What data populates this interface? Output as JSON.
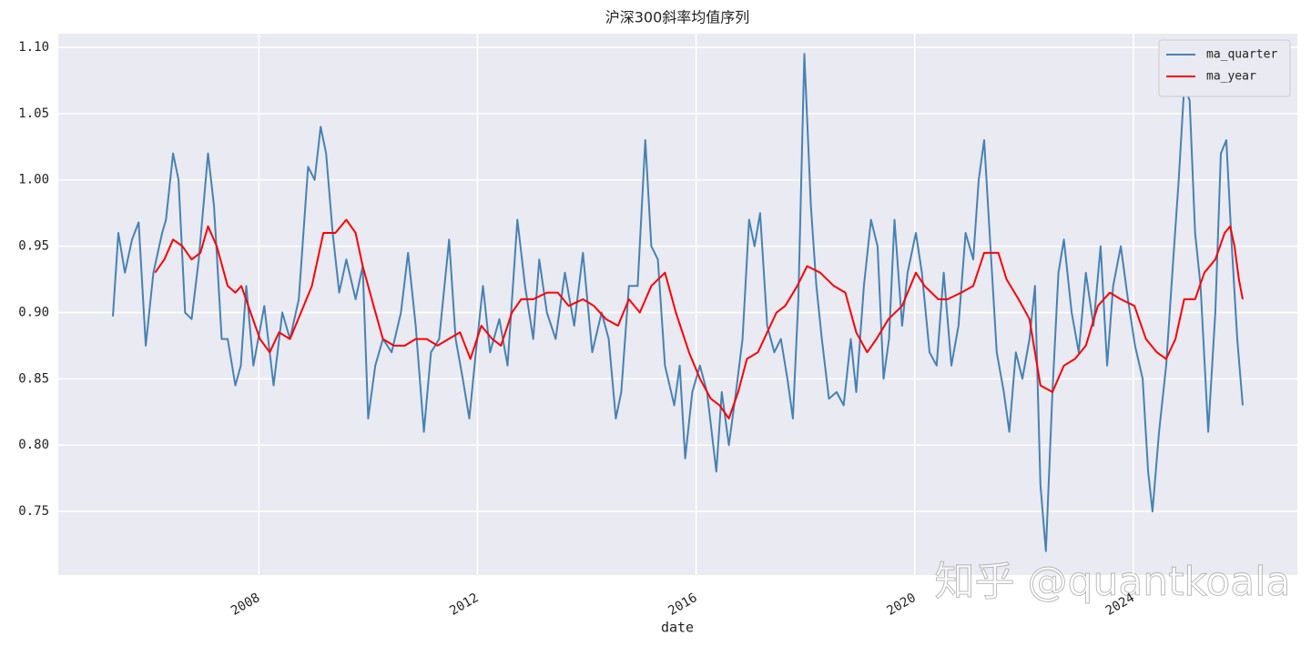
{
  "chart_data": {
    "type": "line",
    "title": "沪深300斜率均值序列",
    "xlabel": "date",
    "watermark": "知乎 @quantkoala",
    "xlim": [
      2004.33,
      2027.0
    ],
    "xticks": [
      2008,
      2012,
      2016,
      2020,
      2024
    ],
    "ylim": [
      0.702,
      1.1103
    ],
    "yticks": [
      {
        "value": 0.75,
        "label": "0.75"
      },
      {
        "value": 0.8,
        "label": "0.80"
      },
      {
        "value": 0.85,
        "label": "0.85"
      },
      {
        "value": 0.9,
        "label": "0.90"
      },
      {
        "value": 0.95,
        "label": "0.95"
      },
      {
        "value": 1.0,
        "label": "1.00"
      },
      {
        "value": 1.05,
        "label": "1.05"
      },
      {
        "value": 1.1,
        "label": "1.10"
      }
    ],
    "grid": true,
    "legend": "upper right",
    "series": [
      {
        "name": "ma_quarter",
        "color": "#4682b4",
        "x": [
          2005.33,
          2005.43,
          2005.55,
          2005.68,
          2005.8,
          2005.93,
          2006.07,
          2006.23,
          2006.3,
          2006.43,
          2006.53,
          2006.65,
          2006.77,
          2006.9,
          2007.07,
          2007.18,
          2007.32,
          2007.43,
          2007.57,
          2007.67,
          2007.77,
          2007.9,
          2008.1,
          2008.27,
          2008.43,
          2008.57,
          2008.73,
          2008.9,
          2009.02,
          2009.13,
          2009.23,
          2009.35,
          2009.47,
          2009.6,
          2009.77,
          2009.9,
          2010.0,
          2010.13,
          2010.27,
          2010.43,
          2010.6,
          2010.73,
          2010.87,
          2011.02,
          2011.15,
          2011.3,
          2011.48,
          2011.6,
          2011.73,
          2011.85,
          2011.97,
          2012.1,
          2012.23,
          2012.4,
          2012.55,
          2012.73,
          2012.87,
          2013.02,
          2013.13,
          2013.27,
          2013.43,
          2013.6,
          2013.77,
          2013.93,
          2014.1,
          2014.27,
          2014.4,
          2014.53,
          2014.63,
          2014.77,
          2014.93,
          2015.07,
          2015.18,
          2015.3,
          2015.43,
          2015.6,
          2015.7,
          2015.8,
          2015.93,
          2016.07,
          2016.2,
          2016.37,
          2016.47,
          2016.6,
          2016.73,
          2016.85,
          2016.97,
          2017.07,
          2017.17,
          2017.3,
          2017.43,
          2017.55,
          2017.67,
          2017.77,
          2017.87,
          2017.98,
          2018.1,
          2018.2,
          2018.3,
          2018.43,
          2018.57,
          2018.7,
          2018.83,
          2018.93,
          2019.07,
          2019.2,
          2019.32,
          2019.43,
          2019.53,
          2019.63,
          2019.77,
          2019.87,
          2020.02,
          2020.13,
          2020.27,
          2020.4,
          2020.53,
          2020.67,
          2020.8,
          2020.93,
          2021.07,
          2021.17,
          2021.27,
          2021.37,
          2021.5,
          2021.63,
          2021.73,
          2021.85,
          2021.97,
          2022.1,
          2022.2,
          2022.3,
          2022.4,
          2022.52,
          2022.63,
          2022.73,
          2022.87,
          2023.0,
          2023.13,
          2023.27,
          2023.4,
          2023.52,
          2023.63,
          2023.77,
          2023.9,
          2024.03,
          2024.17,
          2024.27,
          2024.35,
          2024.47,
          2024.6,
          2024.73,
          2024.83,
          2024.93,
          2025.03,
          2025.13,
          2025.23,
          2025.37,
          2025.5,
          2025.6,
          2025.7,
          2025.8,
          2025.9,
          2026.0
        ],
        "values": [
          0.897,
          0.96,
          0.93,
          0.955,
          0.968,
          0.875,
          0.93,
          0.96,
          0.97,
          1.02,
          1.0,
          0.9,
          0.895,
          0.94,
          1.02,
          0.98,
          0.88,
          0.88,
          0.845,
          0.86,
          0.92,
          0.86,
          0.905,
          0.845,
          0.9,
          0.88,
          0.91,
          1.01,
          1.0,
          1.04,
          1.02,
          0.96,
          0.915,
          0.94,
          0.91,
          0.935,
          0.82,
          0.86,
          0.88,
          0.87,
          0.9,
          0.945,
          0.89,
          0.81,
          0.87,
          0.88,
          0.955,
          0.88,
          0.85,
          0.82,
          0.87,
          0.92,
          0.87,
          0.895,
          0.86,
          0.97,
          0.92,
          0.88,
          0.94,
          0.9,
          0.88,
          0.93,
          0.89,
          0.945,
          0.87,
          0.9,
          0.88,
          0.82,
          0.84,
          0.92,
          0.92,
          1.03,
          0.95,
          0.94,
          0.86,
          0.83,
          0.86,
          0.79,
          0.84,
          0.86,
          0.84,
          0.78,
          0.84,
          0.8,
          0.84,
          0.88,
          0.97,
          0.95,
          0.975,
          0.89,
          0.87,
          0.88,
          0.85,
          0.82,
          0.91,
          1.095,
          0.98,
          0.92,
          0.88,
          0.835,
          0.84,
          0.83,
          0.88,
          0.84,
          0.92,
          0.97,
          0.95,
          0.85,
          0.88,
          0.97,
          0.89,
          0.93,
          0.96,
          0.93,
          0.87,
          0.86,
          0.93,
          0.86,
          0.89,
          0.96,
          0.94,
          1.0,
          1.03,
          0.96,
          0.87,
          0.84,
          0.81,
          0.87,
          0.85,
          0.88,
          0.92,
          0.77,
          0.72,
          0.84,
          0.93,
          0.955,
          0.9,
          0.87,
          0.93,
          0.89,
          0.95,
          0.86,
          0.92,
          0.95,
          0.91,
          0.875,
          0.85,
          0.78,
          0.75,
          0.81,
          0.86,
          0.94,
          1.0,
          1.07,
          1.06,
          0.96,
          0.92,
          0.81,
          0.9,
          1.02,
          1.03,
          0.95,
          0.88,
          0.83
        ]
      },
      {
        "name": "ma_year",
        "color": "#ff0000",
        "x": [
          2006.1,
          2006.27,
          2006.43,
          2006.6,
          2006.77,
          2006.93,
          2007.07,
          2007.23,
          2007.43,
          2007.57,
          2007.68,
          2007.85,
          2008.02,
          2008.2,
          2008.37,
          2008.57,
          2008.77,
          2008.97,
          2009.18,
          2009.4,
          2009.6,
          2009.77,
          2009.9,
          2010.1,
          2010.27,
          2010.47,
          2010.67,
          2010.87,
          2011.07,
          2011.27,
          2011.47,
          2011.68,
          2011.87,
          2012.07,
          2012.27,
          2012.43,
          2012.63,
          2012.8,
          2013.02,
          2013.27,
          2013.47,
          2013.67,
          2013.93,
          2014.13,
          2014.35,
          2014.57,
          2014.77,
          2014.97,
          2015.18,
          2015.43,
          2015.63,
          2015.87,
          2016.07,
          2016.27,
          2016.43,
          2016.6,
          2016.77,
          2016.93,
          2017.13,
          2017.3,
          2017.47,
          2017.63,
          2017.85,
          2018.03,
          2018.27,
          2018.52,
          2018.73,
          2018.93,
          2019.13,
          2019.3,
          2019.52,
          2019.77,
          2020.02,
          2020.18,
          2020.43,
          2020.6,
          2020.85,
          2021.07,
          2021.27,
          2021.53,
          2021.68,
          2021.9,
          2022.1,
          2022.3,
          2022.52,
          2022.73,
          2022.93,
          2023.13,
          2023.35,
          2023.57,
          2023.77,
          2024.02,
          2024.23,
          2024.43,
          2024.6,
          2024.77,
          2024.93,
          2025.13,
          2025.3,
          2025.5,
          2025.67,
          2025.77,
          2025.85,
          2025.93,
          2026.0
        ],
        "values": [
          0.93,
          0.94,
          0.955,
          0.95,
          0.94,
          0.945,
          0.965,
          0.95,
          0.92,
          0.915,
          0.92,
          0.9,
          0.88,
          0.87,
          0.885,
          0.88,
          0.9,
          0.92,
          0.96,
          0.96,
          0.97,
          0.96,
          0.935,
          0.905,
          0.88,
          0.875,
          0.875,
          0.88,
          0.88,
          0.875,
          0.88,
          0.885,
          0.865,
          0.89,
          0.88,
          0.875,
          0.9,
          0.91,
          0.91,
          0.915,
          0.915,
          0.905,
          0.91,
          0.905,
          0.895,
          0.89,
          0.91,
          0.9,
          0.92,
          0.93,
          0.9,
          0.87,
          0.85,
          0.835,
          0.83,
          0.82,
          0.84,
          0.865,
          0.87,
          0.885,
          0.9,
          0.905,
          0.92,
          0.935,
          0.93,
          0.92,
          0.915,
          0.885,
          0.87,
          0.88,
          0.895,
          0.905,
          0.93,
          0.92,
          0.91,
          0.91,
          0.915,
          0.92,
          0.945,
          0.945,
          0.925,
          0.91,
          0.895,
          0.845,
          0.84,
          0.86,
          0.865,
          0.875,
          0.905,
          0.915,
          0.91,
          0.905,
          0.88,
          0.87,
          0.865,
          0.88,
          0.91,
          0.91,
          0.93,
          0.94,
          0.96,
          0.965,
          0.95,
          0.925,
          0.91
        ]
      }
    ]
  }
}
